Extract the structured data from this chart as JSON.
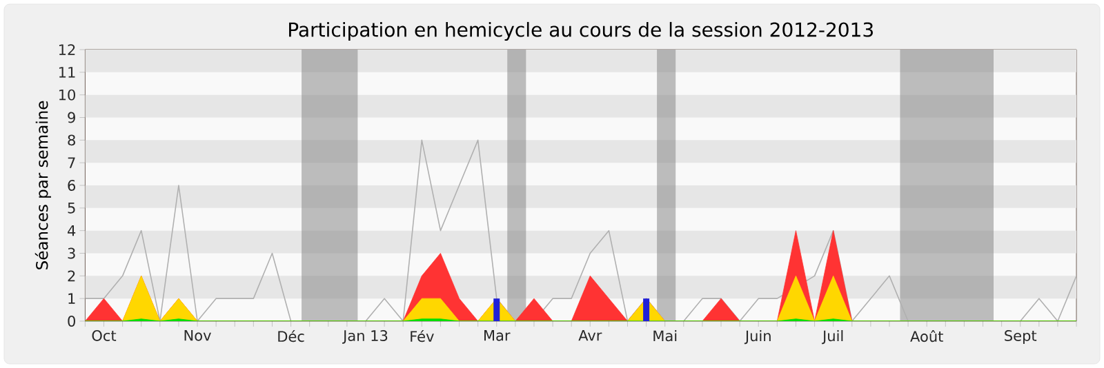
{
  "chart_data": {
    "type": "area",
    "title": "Participation en hemicycle au cours de la session 2012-2013",
    "ylabel": "Séances par semaine",
    "x": [
      "2012-10-01",
      "2012-10-08",
      "2012-10-15",
      "2012-10-22",
      "2012-10-29",
      "2012-11-05",
      "2012-11-12",
      "2012-11-19",
      "2012-11-26",
      "2012-12-03",
      "2012-12-10",
      "2012-12-17",
      "2012-12-24",
      "2012-12-31",
      "2013-01-07",
      "2013-01-14",
      "2013-01-21",
      "2013-01-28",
      "2013-02-04",
      "2013-02-11",
      "2013-02-18",
      "2013-02-25",
      "2013-03-04",
      "2013-03-11",
      "2013-03-18",
      "2013-03-25",
      "2013-04-01",
      "2013-04-08",
      "2013-04-15",
      "2013-04-22",
      "2013-04-29",
      "2013-05-06",
      "2013-05-13",
      "2013-05-20",
      "2013-05-27",
      "2013-06-03",
      "2013-06-10",
      "2013-06-17",
      "2013-06-24",
      "2013-07-01",
      "2013-07-08",
      "2013-07-15",
      "2013-07-22",
      "2013-07-29",
      "2013-08-05",
      "2013-08-12",
      "2013-08-19",
      "2013-08-26",
      "2013-09-02",
      "2013-09-09",
      "2013-09-16",
      "2013-09-23",
      "2013-09-30",
      "2013-10-07"
    ],
    "series": [
      {
        "type": "line",
        "color": "#b0b0b0",
        "values": [
          1,
          1,
          2,
          4,
          0,
          6,
          0,
          1,
          1,
          1,
          3,
          0,
          0,
          0,
          0,
          0,
          1,
          0,
          8,
          4,
          6,
          8,
          1,
          0,
          0,
          1,
          1,
          3,
          4,
          0,
          1,
          0,
          0,
          1,
          1,
          0,
          1,
          1,
          null,
          2,
          4,
          0,
          1,
          2,
          0,
          0,
          0,
          0,
          0,
          0,
          0,
          1,
          0,
          2
        ]
      },
      {
        "color": "#ff3333",
        "values": [
          0,
          1,
          0,
          2,
          0,
          1,
          0,
          0,
          0,
          0,
          0,
          0,
          0,
          0,
          0,
          0,
          0,
          0,
          2,
          3,
          1,
          0,
          1,
          0,
          1,
          0,
          0,
          2,
          1,
          0,
          1,
          0,
          0,
          0,
          1,
          0,
          0,
          0,
          4,
          0,
          4,
          0,
          0,
          0,
          0,
          0,
          0,
          0,
          0,
          0,
          0,
          0,
          0,
          0
        ]
      },
      {
        "color": "#ffd700",
        "values": [
          0,
          0,
          0,
          2,
          0,
          1,
          0,
          0,
          0,
          0,
          0,
          0,
          0,
          0,
          0,
          0,
          0,
          0,
          1,
          1,
          0,
          0,
          1,
          0,
          0,
          0,
          0,
          0,
          0,
          0,
          1,
          0,
          0,
          0,
          0,
          0,
          0,
          0,
          2,
          0,
          2,
          0,
          0,
          0,
          0,
          0,
          0,
          0,
          0,
          0,
          0,
          0,
          0,
          0
        ]
      },
      {
        "color": "#00e000",
        "values": [
          0,
          0,
          0,
          0.1,
          0,
          0.1,
          0,
          0,
          0,
          0,
          0,
          0,
          0,
          0,
          0,
          0,
          0,
          0,
          0.1,
          0.1,
          0,
          0,
          0,
          0,
          0,
          0,
          0,
          0,
          0,
          0,
          0,
          0,
          0,
          0,
          0,
          0,
          0,
          0,
          0.1,
          0,
          0.1,
          0,
          0,
          0,
          0,
          0,
          0,
          0,
          0,
          0,
          0,
          0,
          0,
          0
        ]
      },
      {
        "type": "bar",
        "color": "#2020d8",
        "values": [
          null,
          null,
          null,
          null,
          null,
          null,
          null,
          null,
          null,
          null,
          null,
          null,
          null,
          null,
          null,
          null,
          null,
          null,
          null,
          null,
          null,
          null,
          1,
          null,
          null,
          null,
          null,
          null,
          null,
          null,
          1,
          null,
          null,
          null,
          null,
          null,
          null,
          null,
          null,
          null,
          null,
          null,
          null,
          null,
          null,
          null,
          null,
          null,
          null,
          null,
          null,
          null,
          null,
          null
        ]
      }
    ],
    "xlim": [
      "2012-10-01",
      "2013-10-07"
    ],
    "xticks": [
      {
        "value": "2012-10-01",
        "label": null
      },
      {
        "value": "2012-10-08",
        "label": "Oct"
      },
      {
        "value": "2012-10-15",
        "label": null
      },
      {
        "value": "2012-10-22",
        "label": null
      },
      {
        "value": "2012-10-29",
        "label": null
      },
      {
        "value": "2012-11-05",
        "label": null
      },
      {
        "value": "2012-11-12",
        "label": "Nov"
      },
      {
        "value": "2012-11-19",
        "label": null
      },
      {
        "value": "2012-11-26",
        "label": null
      },
      {
        "value": "2012-12-03",
        "label": null
      },
      {
        "value": "2012-12-10",
        "label": null
      },
      {
        "value": "2012-12-17",
        "label": "Déc"
      },
      {
        "value": "2012-12-24",
        "label": null
      },
      {
        "value": "2012-12-31",
        "label": null
      },
      {
        "value": "2013-01-07",
        "label": null
      },
      {
        "value": "2013-01-14",
        "label": "Jan 13"
      },
      {
        "value": "2013-01-21",
        "label": null
      },
      {
        "value": "2013-01-28",
        "label": null
      },
      {
        "value": "2013-02-04",
        "label": "Fév"
      },
      {
        "value": "2013-02-11",
        "label": null
      },
      {
        "value": "2013-02-18",
        "label": null
      },
      {
        "value": "2013-02-25",
        "label": null
      },
      {
        "value": "2013-03-04",
        "label": "Mar"
      },
      {
        "value": "2013-03-11",
        "label": null
      },
      {
        "value": "2013-03-18",
        "label": null
      },
      {
        "value": "2013-03-25",
        "label": null
      },
      {
        "value": "2013-04-01",
        "label": null
      },
      {
        "value": "2013-04-08",
        "label": "Avr"
      },
      {
        "value": "2013-04-15",
        "label": null
      },
      {
        "value": "2013-04-22",
        "label": null
      },
      {
        "value": "2013-04-29",
        "label": null
      },
      {
        "value": "2013-05-06",
        "label": "Mai"
      },
      {
        "value": "2013-05-13",
        "label": null
      },
      {
        "value": "2013-05-20",
        "label": null
      },
      {
        "value": "2013-05-27",
        "label": null
      },
      {
        "value": "2013-06-03",
        "label": null
      },
      {
        "value": "2013-06-10",
        "label": "Juin"
      },
      {
        "value": "2013-06-17",
        "label": null
      },
      {
        "value": "2013-06-24",
        "label": null
      },
      {
        "value": "2013-07-01",
        "label": null
      },
      {
        "value": "2013-07-08",
        "label": "Juil"
      },
      {
        "value": "2013-07-15",
        "label": null
      },
      {
        "value": "2013-07-22",
        "label": null
      },
      {
        "value": "2013-07-29",
        "label": null
      },
      {
        "value": "2013-08-05",
        "label": null
      },
      {
        "value": "2013-08-12",
        "label": "Août"
      },
      {
        "value": "2013-08-19",
        "label": null
      },
      {
        "value": "2013-08-26",
        "label": null
      },
      {
        "value": "2013-09-02",
        "label": null
      },
      {
        "value": "2013-09-09",
        "label": null
      },
      {
        "value": "2013-09-16",
        "label": "Sept"
      },
      {
        "value": "2013-09-23",
        "label": null
      },
      {
        "value": "2013-09-30",
        "label": null
      },
      {
        "value": "2013-10-07",
        "label": null
      }
    ],
    "ylim": [
      0,
      12
    ],
    "yticks": [
      0,
      1,
      2,
      3,
      4,
      5,
      6,
      7,
      8,
      9,
      10,
      11,
      12
    ],
    "marker": "none",
    "bands": [
      {
        "axis": "x",
        "from": "2012-12-21",
        "to": "2013-01-11",
        "color": "#808080"
      },
      {
        "axis": "x",
        "from": "2013-03-08",
        "to": "2013-03-15",
        "color": "#808080"
      },
      {
        "axis": "x",
        "from": "2013-05-03",
        "to": "2013-05-10",
        "color": "#808080"
      },
      {
        "axis": "x",
        "from": "2013-08-02",
        "to": "2013-09-06",
        "color": "#808080"
      }
    ]
  }
}
